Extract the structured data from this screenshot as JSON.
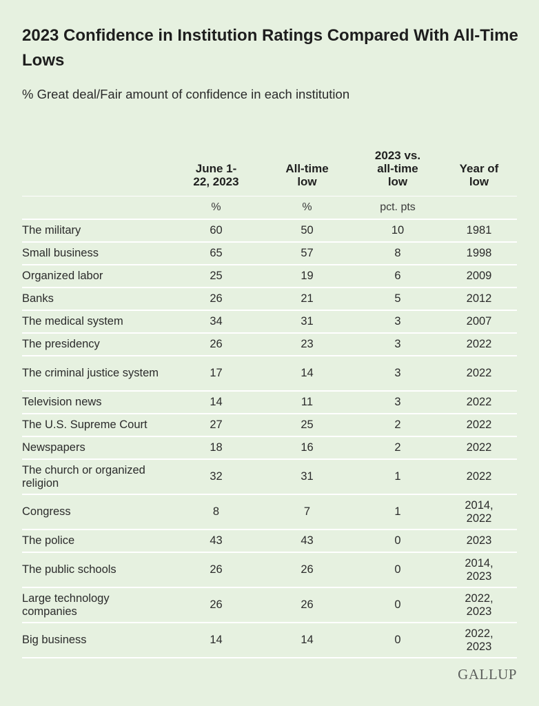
{
  "chart_data": {
    "type": "table",
    "title": "2023 Confidence in Institution Ratings Compared With All-Time Lows",
    "subtitle": "% Great deal/Fair amount of confidence in each institution",
    "columns": [
      "June 1-\n22, 2023",
      "All-time\nlow",
      "2023 vs.\nall-time\nlow",
      "Year of\nlow"
    ],
    "units": [
      "%",
      "%",
      "pct. pts",
      ""
    ],
    "rows": [
      {
        "name": "The military",
        "june_2023": "60",
        "all_time_low": "50",
        "diff": "10",
        "year": "1981"
      },
      {
        "name": "Small business",
        "june_2023": "65",
        "all_time_low": "57",
        "diff": "8",
        "year": "1998"
      },
      {
        "name": "Organized labor",
        "june_2023": "25",
        "all_time_low": "19",
        "diff": "6",
        "year": "2009"
      },
      {
        "name": "Banks",
        "june_2023": "26",
        "all_time_low": "21",
        "diff": "5",
        "year": "2012"
      },
      {
        "name": "The medical system",
        "june_2023": "34",
        "all_time_low": "31",
        "diff": "3",
        "year": "2007"
      },
      {
        "name": "The presidency",
        "june_2023": "26",
        "all_time_low": "23",
        "diff": "3",
        "year": "2022"
      },
      {
        "name": "The criminal justice system",
        "june_2023": "17",
        "all_time_low": "14",
        "diff": "3",
        "year": "2022"
      },
      {
        "name": "Television news",
        "june_2023": "14",
        "all_time_low": "11",
        "diff": "3",
        "year": "2022"
      },
      {
        "name": "The U.S. Supreme Court",
        "june_2023": "27",
        "all_time_low": "25",
        "diff": "2",
        "year": "2022"
      },
      {
        "name": "Newspapers",
        "june_2023": "18",
        "all_time_low": "16",
        "diff": "2",
        "year": "2022"
      },
      {
        "name": "The church or organized religion",
        "june_2023": "32",
        "all_time_low": "31",
        "diff": "1",
        "year": "2022"
      },
      {
        "name": "Congress",
        "june_2023": "8",
        "all_time_low": "7",
        "diff": "1",
        "year": "2014,\n2022"
      },
      {
        "name": "The police",
        "june_2023": "43",
        "all_time_low": "43",
        "diff": "0",
        "year": "2023"
      },
      {
        "name": "The public schools",
        "june_2023": "26",
        "all_time_low": "26",
        "diff": "0",
        "year": "2014,\n2023"
      },
      {
        "name": "Large technology companies",
        "june_2023": "26",
        "all_time_low": "26",
        "diff": "0",
        "year": "2022,\n2023"
      },
      {
        "name": "Big business",
        "june_2023": "14",
        "all_time_low": "14",
        "diff": "0",
        "year": "2022,\n2023"
      }
    ]
  },
  "brand": {
    "logo_text": "GALLUP"
  },
  "colors": {
    "background": "#e6f1e0",
    "rule": "#ffffff",
    "text": "#1f1f1f",
    "logo": "#5c5f5c"
  }
}
